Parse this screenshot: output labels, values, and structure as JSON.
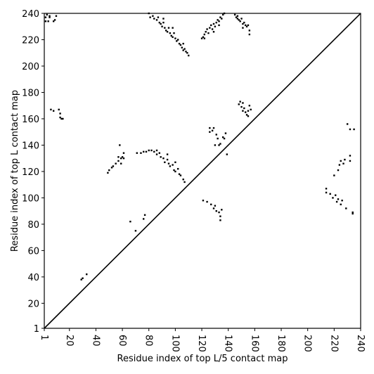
{
  "chart_data": {
    "type": "scatter",
    "xlabel": "Residue index of top L/5 contact map",
    "ylabel": "Residue index of top L contact map",
    "color": "#000000",
    "diagonal": true,
    "xlim": [
      1,
      240
    ],
    "ylim": [
      1,
      240
    ],
    "xticks": [
      1,
      20,
      40,
      60,
      80,
      100,
      120,
      140,
      160,
      180,
      200,
      220,
      240
    ],
    "yticks": [
      1,
      20,
      40,
      60,
      80,
      100,
      120,
      140,
      160,
      180,
      200,
      220,
      240
    ],
    "x": [
      2,
      2,
      4,
      5,
      5,
      8,
      9,
      10,
      3,
      80,
      81,
      83,
      84,
      86,
      87,
      88,
      89,
      90,
      91,
      92,
      93,
      94,
      95,
      96,
      97,
      98,
      99,
      100,
      101,
      102,
      103,
      104,
      105,
      106,
      107,
      108,
      109,
      110,
      106,
      98,
      91,
      120,
      121,
      122,
      123,
      124,
      125,
      126,
      127,
      128,
      129,
      130,
      131,
      132,
      133,
      134,
      135,
      136,
      137,
      129,
      122,
      133,
      145,
      146,
      147,
      148,
      149,
      150,
      151,
      152,
      153,
      154,
      155,
      156,
      156,
      151,
      147,
      6,
      8,
      12,
      13,
      13,
      14,
      15,
      148,
      149,
      150,
      151,
      151,
      152,
      153,
      154,
      155,
      155,
      156,
      157,
      126,
      128,
      129,
      131,
      132,
      133,
      134,
      136,
      137,
      138,
      139,
      126,
      130,
      49,
      50,
      52,
      53,
      55,
      57,
      57,
      58,
      59,
      60,
      61,
      61,
      59,
      71,
      74,
      76,
      78,
      80,
      82,
      84,
      86,
      88,
      89,
      91,
      92,
      94,
      95,
      96,
      98,
      99,
      100,
      102,
      103,
      104,
      106,
      107,
      100,
      86,
      94,
      29,
      30,
      33,
      66,
      70,
      76,
      77,
      121,
      124,
      127,
      129,
      130,
      131,
      133,
      134,
      135,
      134,
      214,
      214,
      217,
      219,
      221,
      222,
      223,
      225,
      226,
      229,
      234,
      234,
      220,
      223,
      224,
      225,
      227,
      228,
      232,
      232,
      230,
      232,
      235
    ],
    "y": [
      234,
      237,
      234,
      237,
      238,
      234,
      235,
      238,
      239,
      240,
      237,
      238,
      236,
      235,
      237,
      233,
      232,
      230,
      233,
      229,
      227,
      226,
      229,
      225,
      223,
      222,
      225,
      221,
      219,
      220,
      217,
      216,
      214,
      217,
      213,
      211,
      210,
      208,
      212,
      229,
      236,
      221,
      222,
      224,
      226,
      228,
      225,
      229,
      231,
      228,
      232,
      230,
      233,
      235,
      234,
      237,
      236,
      239,
      240,
      226,
      221,
      231,
      239,
      237,
      238,
      235,
      234,
      236,
      232,
      233,
      231,
      230,
      231,
      227,
      224,
      229,
      236,
      167,
      166,
      167,
      164,
      161,
      160,
      160,
      171,
      173,
      169,
      172,
      166,
      168,
      165,
      163,
      162,
      166,
      170,
      167,
      153,
      151,
      153,
      148,
      145,
      140,
      141,
      146,
      145,
      149,
      133,
      150,
      140,
      119,
      121,
      123,
      124,
      126,
      128,
      131,
      140,
      130,
      131,
      134,
      130,
      126,
      134,
      134,
      135,
      135,
      136,
      136,
      135,
      136,
      134,
      131,
      130,
      127,
      129,
      126,
      124,
      125,
      121,
      120,
      122,
      118,
      117,
      114,
      112,
      127,
      133,
      133,
      38,
      39,
      42,
      82,
      75,
      84,
      87,
      98,
      97,
      95,
      92,
      94,
      90,
      89,
      86,
      91,
      83,
      107,
      104,
      103,
      100,
      102,
      97,
      99,
      95,
      98,
      92,
      88,
      89,
      117,
      121,
      125,
      128,
      126,
      129,
      128,
      132,
      156,
      152,
      152
    ]
  }
}
